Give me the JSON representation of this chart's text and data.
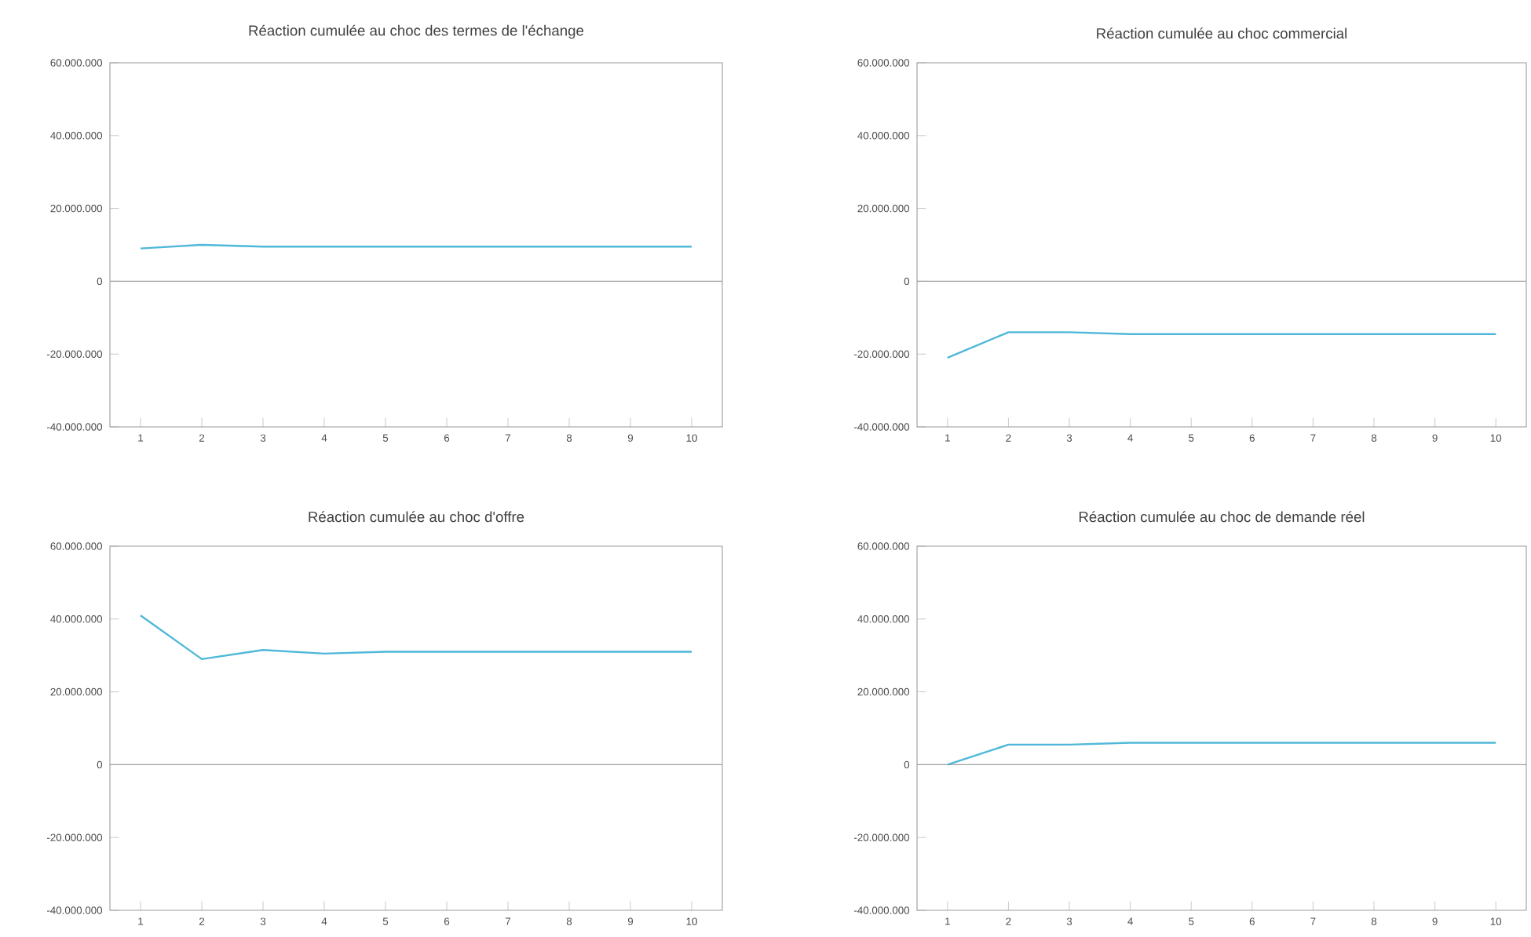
{
  "chart_data": [
    {
      "type": "line",
      "title": "Réaction cumulée au choc des termes de l'échange",
      "categories": [
        "1",
        "2",
        "3",
        "4",
        "5",
        "6",
        "7",
        "8",
        "9",
        "10"
      ],
      "series": [
        {
          "color": "#4fb8d8",
          "values": [
            9000000,
            10000000,
            9500000,
            9500000,
            9500000,
            9500000,
            9500000,
            9500000,
            9500000,
            9500000
          ]
        }
      ],
      "ylim": [
        -40000000,
        60000000
      ],
      "yticks": [
        {
          "value": -40000000,
          "label": "-40.000.000"
        },
        {
          "value": -20000000,
          "label": "-20.000.000"
        },
        0,
        {
          "value": 20000000,
          "label": "20.000.000"
        },
        {
          "value": 40000000,
          "label": "40.000.000"
        },
        {
          "value": 60000000,
          "label": "60.000.000"
        }
      ],
      "ref_lines": [
        {
          "axis": "y",
          "value": 0,
          "color": "#a0a0a0"
        }
      ]
    },
    {
      "type": "line",
      "title": "Réaction cumulée au choc commercial",
      "categories": [
        "1",
        "2",
        "3",
        "4",
        "5",
        "6",
        "7",
        "8",
        "9",
        "10"
      ],
      "series": [
        {
          "color": "#4fb8d8",
          "values": [
            -21000000,
            -14000000,
            -14000000,
            -14500000,
            -14500000,
            -14500000,
            -14500000,
            -14500000,
            -14500000,
            -14500000
          ]
        }
      ],
      "ylim": [
        -40000000,
        60000000
      ],
      "yticks": [
        {
          "value": -40000000,
          "label": "-40.000.000"
        },
        {
          "value": -20000000,
          "label": "-20.000.000"
        },
        0,
        {
          "value": 20000000,
          "label": "20.000.000"
        },
        {
          "value": 40000000,
          "label": "40.000.000"
        },
        {
          "value": 60000000,
          "label": "60.000.000"
        }
      ],
      "ref_lines": [
        {
          "axis": "y",
          "value": 0,
          "color": "#a0a0a0"
        }
      ]
    },
    {
      "type": "line",
      "title": "Réaction cumulée au choc d'offre",
      "categories": [
        "1",
        "2",
        "3",
        "4",
        "5",
        "6",
        "7",
        "8",
        "9",
        "10"
      ],
      "series": [
        {
          "color": "#4fb8d8",
          "values": [
            41000000,
            29000000,
            31500000,
            30500000,
            31000000,
            31000000,
            31000000,
            31000000,
            31000000,
            31000000
          ]
        }
      ],
      "ylim": [
        -40000000,
        60000000
      ],
      "yticks": [
        {
          "value": -40000000,
          "label": "-40.000.000"
        },
        {
          "value": -20000000,
          "label": "-20.000.000"
        },
        0,
        {
          "value": 20000000,
          "label": "20.000.000"
        },
        {
          "value": 40000000,
          "label": "40.000.000"
        },
        {
          "value": 60000000,
          "label": "60.000.000"
        }
      ],
      "ref_lines": [
        {
          "axis": "y",
          "value": 0,
          "color": "#a0a0a0"
        }
      ]
    },
    {
      "type": "line",
      "title": "Réaction cumulée au choc de demande réel",
      "categories": [
        "1",
        "2",
        "3",
        "4",
        "5",
        "6",
        "7",
        "8",
        "9",
        "10"
      ],
      "series": [
        {
          "color": "#4fb8d8",
          "values": [
            0,
            5500000,
            5500000,
            6000000,
            6000000,
            6000000,
            6000000,
            6000000,
            6000000,
            6000000
          ]
        }
      ],
      "ylim": [
        -40000000,
        60000000
      ],
      "yticks": [
        {
          "value": -40000000,
          "label": "-40.000.000"
        },
        {
          "value": -20000000,
          "label": "-20.000.000"
        },
        0,
        {
          "value": 20000000,
          "label": "20.000.000"
        },
        {
          "value": 40000000,
          "label": "40.000.000"
        },
        {
          "value": 60000000,
          "label": "60.000.000"
        }
      ],
      "ref_lines": [
        {
          "axis": "y",
          "value": 0,
          "color": "#a0a0a0"
        }
      ]
    }
  ]
}
